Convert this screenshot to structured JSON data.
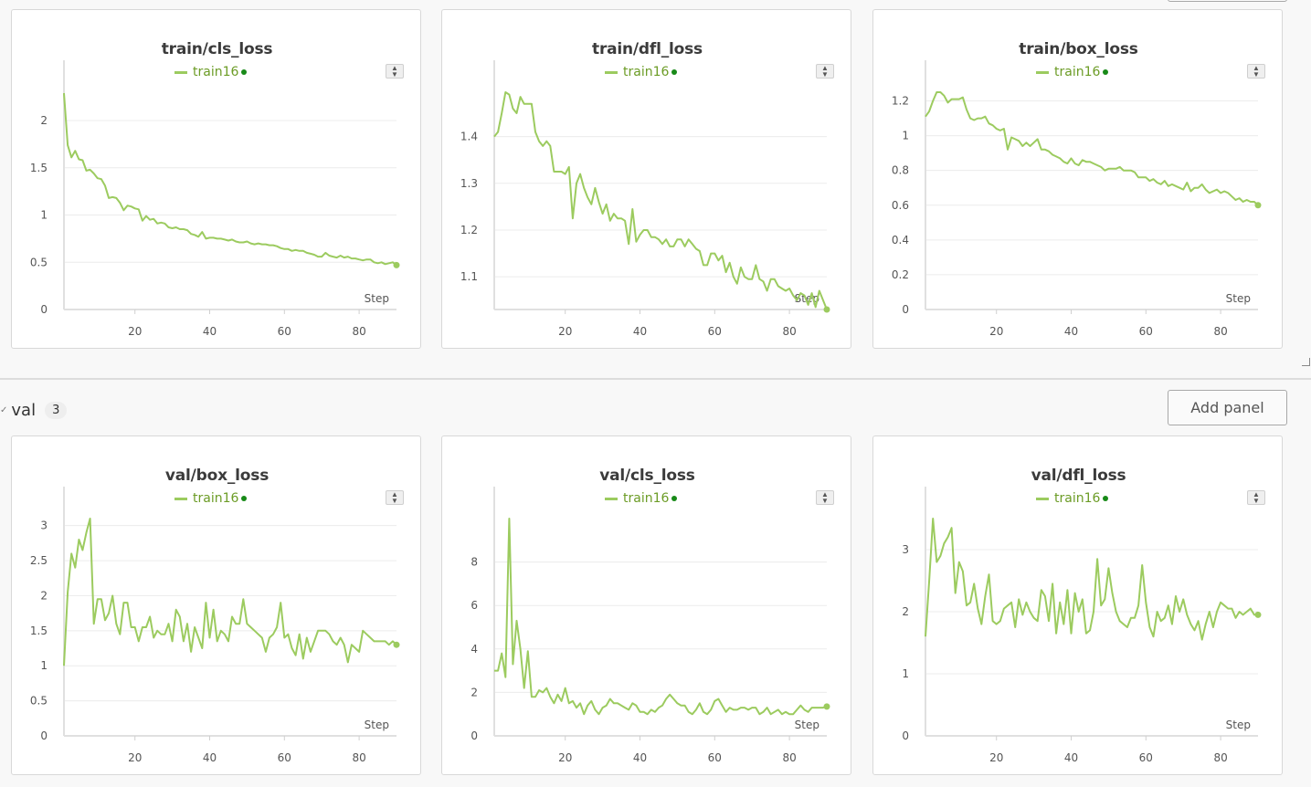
{
  "section": {
    "name": "val",
    "count": "3",
    "add_panel_label": "Add panel"
  },
  "colors": {
    "line": "#9ccb5f",
    "end_dot": "#188a18",
    "legend_text": "#6c9c26"
  },
  "chart_data": [
    {
      "type": "line",
      "title": "train/cls_loss",
      "legend": "train16",
      "xlabel": "Step",
      "xlim": [
        1,
        90
      ],
      "ylim": [
        0,
        2.3
      ],
      "xticks": [
        20,
        40,
        60,
        80
      ],
      "yticks": [
        {
          "v": 0,
          "l": "0"
        },
        {
          "v": 0.5,
          "l": "0.5"
        },
        {
          "v": 1,
          "l": "1"
        },
        {
          "v": 1.5,
          "l": "1.5"
        },
        {
          "v": 2,
          "l": "2"
        }
      ],
      "series": [
        {
          "name": "train16",
          "x_start": 1,
          "values": [
            2.29,
            1.74,
            1.61,
            1.68,
            1.59,
            1.58,
            1.47,
            1.48,
            1.44,
            1.39,
            1.38,
            1.31,
            1.18,
            1.19,
            1.18,
            1.13,
            1.05,
            1.1,
            1.09,
            1.07,
            1.06,
            0.94,
            0.99,
            0.95,
            0.96,
            0.91,
            0.92,
            0.91,
            0.87,
            0.86,
            0.87,
            0.85,
            0.85,
            0.84,
            0.8,
            0.79,
            0.77,
            0.82,
            0.75,
            0.76,
            0.76,
            0.75,
            0.75,
            0.74,
            0.73,
            0.74,
            0.72,
            0.71,
            0.71,
            0.72,
            0.7,
            0.69,
            0.7,
            0.69,
            0.69,
            0.68,
            0.68,
            0.67,
            0.65,
            0.64,
            0.64,
            0.62,
            0.63,
            0.62,
            0.62,
            0.6,
            0.59,
            0.58,
            0.56,
            0.56,
            0.6,
            0.57,
            0.56,
            0.55,
            0.57,
            0.55,
            0.56,
            0.54,
            0.54,
            0.53,
            0.52,
            0.53,
            0.53,
            0.5,
            0.49,
            0.5,
            0.48,
            0.49,
            0.5,
            0.47
          ]
        }
      ]
    },
    {
      "type": "line",
      "title": "train/dfl_loss",
      "legend": "train16",
      "xlabel": "Step",
      "xlim": [
        1,
        90
      ],
      "ylim": [
        1.03,
        1.495
      ],
      "xticks": [
        20,
        40,
        60,
        80
      ],
      "yticks": [
        {
          "v": 1.1,
          "l": "1.1"
        },
        {
          "v": 1.2,
          "l": "1.2"
        },
        {
          "v": 1.3,
          "l": "1.3"
        },
        {
          "v": 1.4,
          "l": "1.4"
        }
      ],
      "series": [
        {
          "name": "train16",
          "x_start": 1,
          "values": [
            1.4,
            1.41,
            1.45,
            1.495,
            1.49,
            1.46,
            1.45,
            1.485,
            1.47,
            1.47,
            1.47,
            1.41,
            1.39,
            1.38,
            1.39,
            1.38,
            1.325,
            1.325,
            1.325,
            1.32,
            1.335,
            1.225,
            1.3,
            1.32,
            1.29,
            1.27,
            1.255,
            1.29,
            1.26,
            1.235,
            1.255,
            1.22,
            1.235,
            1.225,
            1.225,
            1.22,
            1.17,
            1.245,
            1.175,
            1.19,
            1.2,
            1.2,
            1.185,
            1.185,
            1.18,
            1.17,
            1.18,
            1.165,
            1.165,
            1.18,
            1.18,
            1.165,
            1.18,
            1.17,
            1.16,
            1.155,
            1.125,
            1.125,
            1.15,
            1.15,
            1.135,
            1.145,
            1.11,
            1.13,
            1.1,
            1.085,
            1.12,
            1.1,
            1.095,
            1.095,
            1.125,
            1.095,
            1.09,
            1.07,
            1.095,
            1.095,
            1.08,
            1.075,
            1.07,
            1.075,
            1.06,
            1.05,
            1.065,
            1.06,
            1.04,
            1.065,
            1.035,
            1.07,
            1.05,
            1.03
          ]
        }
      ]
    },
    {
      "type": "line",
      "title": "train/box_loss",
      "legend": "train16",
      "xlabel": "Step",
      "xlim": [
        1,
        90
      ],
      "ylim": [
        0,
        1.25
      ],
      "xticks": [
        20,
        40,
        60,
        80
      ],
      "yticks": [
        {
          "v": 0,
          "l": "0"
        },
        {
          "v": 0.2,
          "l": "0.2"
        },
        {
          "v": 0.4,
          "l": "0.4"
        },
        {
          "v": 0.6,
          "l": "0.6"
        },
        {
          "v": 0.8,
          "l": "0.8"
        },
        {
          "v": 1,
          "l": "1"
        },
        {
          "v": 1.2,
          "l": "1.2"
        }
      ],
      "series": [
        {
          "name": "train16",
          "x_start": 1,
          "values": [
            1.11,
            1.14,
            1.2,
            1.25,
            1.25,
            1.23,
            1.19,
            1.21,
            1.21,
            1.21,
            1.22,
            1.15,
            1.1,
            1.09,
            1.1,
            1.1,
            1.11,
            1.07,
            1.06,
            1.04,
            1.03,
            1.04,
            0.92,
            0.99,
            0.98,
            0.97,
            0.94,
            0.96,
            0.94,
            0.96,
            0.98,
            0.92,
            0.92,
            0.91,
            0.89,
            0.88,
            0.87,
            0.85,
            0.84,
            0.87,
            0.84,
            0.83,
            0.86,
            0.85,
            0.85,
            0.84,
            0.83,
            0.82,
            0.8,
            0.81,
            0.81,
            0.81,
            0.82,
            0.8,
            0.8,
            0.8,
            0.79,
            0.76,
            0.76,
            0.76,
            0.74,
            0.75,
            0.73,
            0.72,
            0.74,
            0.71,
            0.72,
            0.71,
            0.7,
            0.69,
            0.73,
            0.68,
            0.7,
            0.7,
            0.72,
            0.69,
            0.67,
            0.68,
            0.69,
            0.67,
            0.68,
            0.67,
            0.65,
            0.63,
            0.64,
            0.62,
            0.63,
            0.62,
            0.62,
            0.6
          ]
        }
      ]
    },
    {
      "type": "line",
      "title": "val/box_loss",
      "legend": "train16",
      "xlabel": "Step",
      "xlim": [
        1,
        90
      ],
      "ylim": [
        0,
        3.1
      ],
      "xticks": [
        20,
        40,
        60,
        80
      ],
      "yticks": [
        {
          "v": 0,
          "l": "0"
        },
        {
          "v": 0.5,
          "l": "0.5"
        },
        {
          "v": 1,
          "l": "1"
        },
        {
          "v": 1.5,
          "l": "1.5"
        },
        {
          "v": 2,
          "l": "2"
        },
        {
          "v": 2.5,
          "l": "2.5"
        },
        {
          "v": 3,
          "l": "3"
        }
      ],
      "series": [
        {
          "name": "train16",
          "x_start": 1,
          "values": [
            1.0,
            2.05,
            2.6,
            2.4,
            2.8,
            2.65,
            2.9,
            3.1,
            1.6,
            1.95,
            1.95,
            1.65,
            1.75,
            2.0,
            1.6,
            1.45,
            1.9,
            1.9,
            1.55,
            1.55,
            1.35,
            1.55,
            1.55,
            1.7,
            1.4,
            1.5,
            1.45,
            1.45,
            1.6,
            1.35,
            1.8,
            1.7,
            1.35,
            1.6,
            1.2,
            1.55,
            1.4,
            1.25,
            1.9,
            1.4,
            1.8,
            1.35,
            1.5,
            1.45,
            1.35,
            1.7,
            1.6,
            1.6,
            1.95,
            1.6,
            1.55,
            1.5,
            1.45,
            1.4,
            1.2,
            1.4,
            1.45,
            1.55,
            1.9,
            1.4,
            1.45,
            1.25,
            1.15,
            1.45,
            1.1,
            1.4,
            1.2,
            1.35,
            1.5,
            1.5,
            1.5,
            1.45,
            1.35,
            1.3,
            1.4,
            1.3,
            1.05,
            1.3,
            1.25,
            1.2,
            1.5,
            1.45,
            1.4,
            1.35,
            1.35,
            1.35,
            1.35,
            1.3,
            1.35,
            1.3
          ]
        }
      ]
    },
    {
      "type": "line",
      "title": "val/cls_loss",
      "legend": "train16",
      "xlabel": "Step",
      "xlim": [
        1,
        90
      ],
      "ylim": [
        0,
        10
      ],
      "xticks": [
        20,
        40,
        60,
        80
      ],
      "yticks": [
        {
          "v": 0,
          "l": "0"
        },
        {
          "v": 2,
          "l": "2"
        },
        {
          "v": 4,
          "l": "4"
        },
        {
          "v": 6,
          "l": "6"
        },
        {
          "v": 8,
          "l": "8"
        }
      ],
      "series": [
        {
          "name": "train16",
          "x_start": 1,
          "values": [
            3.0,
            3.0,
            3.8,
            2.7,
            10.0,
            3.3,
            5.3,
            4.0,
            2.2,
            3.9,
            1.8,
            1.8,
            2.1,
            2.0,
            2.2,
            1.8,
            1.5,
            1.9,
            1.6,
            2.2,
            1.5,
            1.6,
            1.3,
            1.5,
            1.0,
            1.4,
            1.6,
            1.2,
            1.0,
            1.3,
            1.4,
            1.7,
            1.5,
            1.5,
            1.4,
            1.3,
            1.2,
            1.5,
            1.4,
            1.1,
            1.1,
            1.0,
            1.2,
            1.1,
            1.3,
            1.4,
            1.7,
            1.9,
            1.7,
            1.5,
            1.4,
            1.4,
            1.1,
            1.0,
            1.2,
            1.5,
            1.1,
            1.0,
            1.2,
            1.6,
            1.7,
            1.4,
            1.1,
            1.3,
            1.2,
            1.2,
            1.3,
            1.3,
            1.2,
            1.3,
            1.3,
            1.0,
            1.1,
            1.3,
            1.0,
            1.1,
            1.2,
            1.0,
            1.1,
            1.0,
            1.0,
            1.2,
            1.4,
            1.2,
            1.1,
            1.3,
            1.3,
            1.3,
            1.3,
            1.35
          ]
        }
      ]
    },
    {
      "type": "line",
      "title": "val/dfl_loss",
      "legend": "train16",
      "xlabel": "Step",
      "xlim": [
        1,
        90
      ],
      "ylim": [
        0,
        3.5
      ],
      "xticks": [
        20,
        40,
        60,
        80
      ],
      "yticks": [
        {
          "v": 0,
          "l": "0"
        },
        {
          "v": 1,
          "l": "1"
        },
        {
          "v": 2,
          "l": "2"
        },
        {
          "v": 3,
          "l": "3"
        }
      ],
      "series": [
        {
          "name": "train16",
          "x_start": 1,
          "values": [
            1.6,
            2.5,
            3.5,
            2.8,
            2.9,
            3.1,
            3.2,
            3.35,
            2.3,
            2.8,
            2.65,
            2.1,
            2.15,
            2.45,
            2.05,
            1.8,
            2.25,
            2.6,
            1.85,
            1.8,
            1.85,
            2.05,
            2.1,
            2.15,
            1.75,
            2.2,
            1.95,
            2.15,
            2.0,
            1.9,
            1.85,
            2.35,
            2.25,
            1.85,
            2.45,
            1.65,
            2.15,
            1.8,
            2.35,
            1.65,
            2.3,
            2.0,
            2.2,
            1.65,
            1.7,
            2.0,
            2.85,
            2.1,
            2.2,
            2.7,
            2.3,
            2.0,
            1.85,
            1.8,
            1.75,
            1.9,
            1.9,
            2.1,
            2.75,
            2.15,
            1.75,
            1.6,
            2.0,
            1.85,
            1.9,
            2.1,
            1.8,
            2.25,
            2.0,
            2.2,
            1.95,
            1.8,
            1.7,
            1.85,
            1.55,
            1.8,
            2.0,
            1.75,
            2.0,
            2.15,
            2.1,
            2.05,
            2.05,
            1.9,
            2.0,
            1.95,
            2.0,
            2.05,
            1.95,
            1.95
          ]
        }
      ]
    }
  ]
}
